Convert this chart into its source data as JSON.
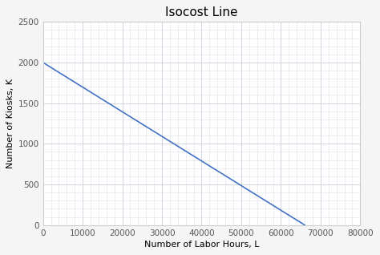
{
  "title": "Isocost Line",
  "xlabel": "Number of Labor Hours, L",
  "ylabel": "Number of Kiosks, K",
  "x_start": 0,
  "x_end": 66000,
  "y_start": 2000,
  "y_end": 0,
  "xlim": [
    0,
    80000
  ],
  "ylim": [
    0,
    2500
  ],
  "xticks": [
    0,
    10000,
    20000,
    30000,
    40000,
    50000,
    60000,
    70000,
    80000
  ],
  "yticks": [
    0,
    500,
    1000,
    1500,
    2000,
    2500
  ],
  "x_minor_ticks": 5,
  "y_minor_ticks": 5,
  "line_color": "#4472c4",
  "line_width": 1.2,
  "grid_major_color": "#c8cdd8",
  "grid_minor_color": "#dde0e8",
  "background_color": "#ffffff",
  "axes_background": "#ffffff",
  "fig_background": "#f5f5f5",
  "title_fontsize": 11,
  "label_fontsize": 8,
  "tick_fontsize": 7.5
}
